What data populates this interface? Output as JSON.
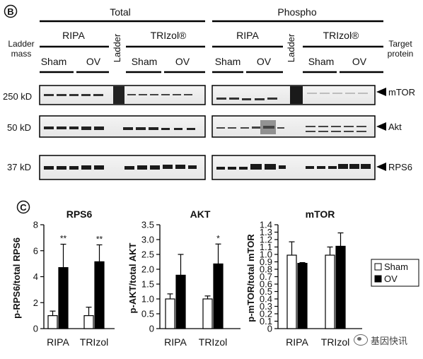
{
  "panel_b": {
    "badge": "B",
    "group_total": "Total",
    "group_phospho": "Phospho",
    "ladder_mass_label": [
      "Ladder",
      "mass"
    ],
    "target_protein_label": [
      "Target",
      "protein"
    ],
    "buffers": [
      "RIPA",
      "TRIzol®",
      "RIPA",
      "TRIzol®"
    ],
    "conditions": [
      "Sham",
      "OV",
      "Sham",
      "OV",
      "Sham",
      "OV",
      "Sham",
      "OV"
    ],
    "ladder_label": "Ladder",
    "bands": [
      {
        "mass": "250 kD",
        "target": "mTOR"
      },
      {
        "mass": "50 kD",
        "target": "Akt"
      },
      {
        "mass": "37 kD",
        "target": "RPS6"
      }
    ]
  },
  "panel_c": {
    "badge": "C",
    "legend": [
      "Sham",
      "OV"
    ]
  },
  "chart_data": [
    {
      "type": "bar",
      "title": "RPS6",
      "ylabel": "p-RPS6/total RPS6",
      "categories": [
        "RIPA",
        "TRIzol"
      ],
      "ylim": [
        0,
        8
      ],
      "yticks": [
        0,
        2,
        4,
        6,
        8
      ],
      "series": [
        {
          "name": "Sham",
          "values": [
            1.0,
            1.0
          ],
          "errors": [
            0.35,
            0.65
          ],
          "color": "#ffffff"
        },
        {
          "name": "OV",
          "values": [
            4.7,
            5.15
          ],
          "errors": [
            1.8,
            1.3
          ],
          "color": "#000000"
        }
      ],
      "annotations": [
        "**",
        "**"
      ]
    },
    {
      "type": "bar",
      "title": "AKT",
      "ylabel": "p-AKT/total AKT",
      "categories": [
        "RIPA",
        "TRIzol"
      ],
      "ylim": [
        0,
        3.5
      ],
      "yticks": [
        "0",
        "0.5",
        "1.0",
        "1.5",
        "2.0",
        "2.5",
        "3.0",
        "3.5"
      ],
      "series": [
        {
          "name": "Sham",
          "values": [
            1.0,
            1.0
          ],
          "errors": [
            0.17,
            0.1
          ],
          "color": "#ffffff"
        },
        {
          "name": "OV",
          "values": [
            1.8,
            2.18
          ],
          "errors": [
            0.7,
            0.67
          ],
          "color": "#000000"
        }
      ],
      "annotations": [
        "",
        "*"
      ]
    },
    {
      "type": "bar",
      "title": "mTOR",
      "ylabel": "p-mTOR/total mTOR",
      "categories": [
        "RIPA",
        "TRIzol"
      ],
      "ylim": [
        0,
        1.4
      ],
      "yticks": [
        "0",
        "0.1",
        "0.2",
        "0.3",
        "0.4",
        "0.5",
        "0.6",
        "0.7",
        "0.8",
        "0.9",
        "1.0",
        "1.1",
        "1.2",
        "1.3",
        "1.4"
      ],
      "series": [
        {
          "name": "Sham",
          "values": [
            0.99,
            0.99
          ],
          "errors": [
            0.18,
            0.11
          ],
          "color": "#ffffff"
        },
        {
          "name": "OV",
          "values": [
            0.88,
            1.11
          ],
          "errors": [
            0.01,
            0.18
          ],
          "color": "#000000"
        }
      ],
      "annotations": [
        "",
        ""
      ]
    }
  ],
  "watermark": "基因快讯"
}
